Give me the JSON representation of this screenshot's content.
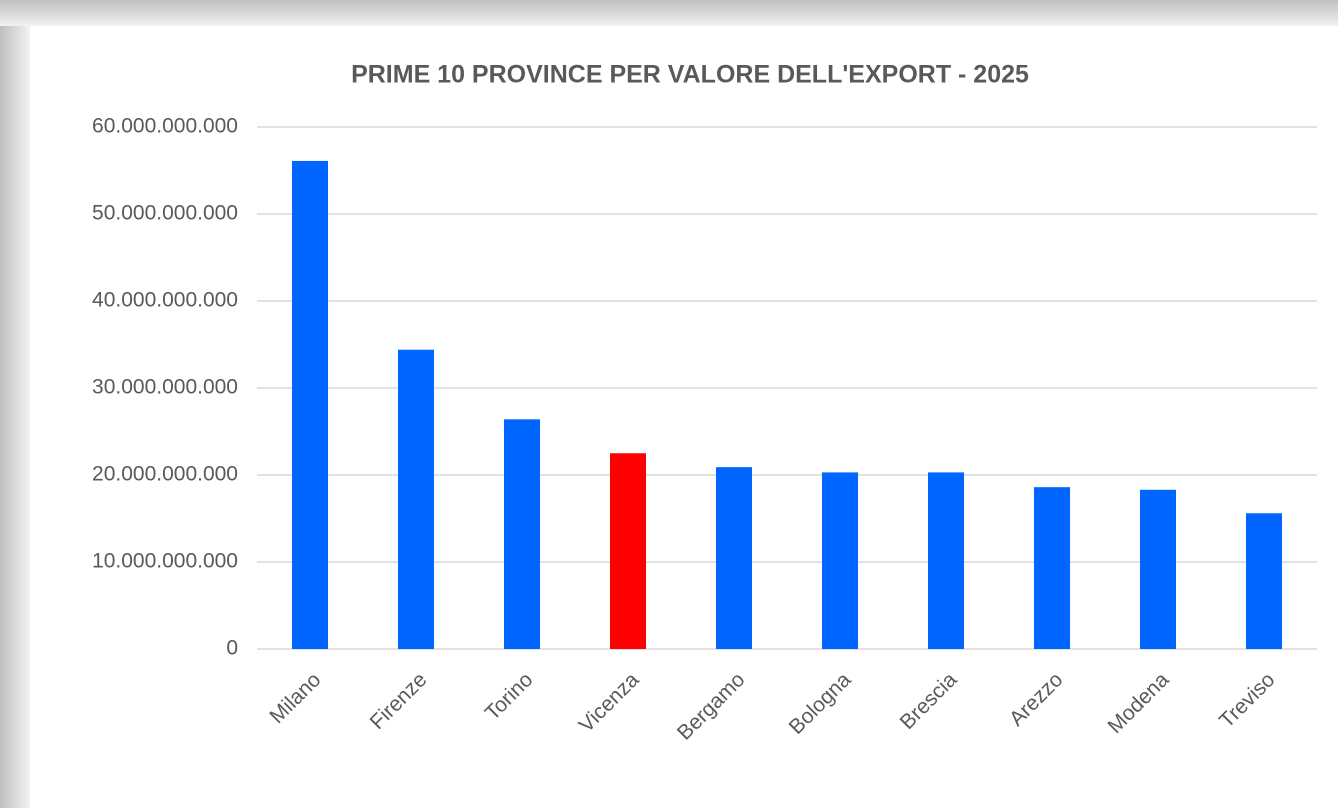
{
  "chart_data": {
    "type": "bar",
    "title": "PRIME 10 PROVINCE PER VALORE DELL'EXPORT - 2025",
    "categories": [
      "Milano",
      "Firenze",
      "Torino",
      "Vicenza",
      "Bergamo",
      "Bologna",
      "Brescia",
      "Arezzo",
      "Modena",
      "Treviso"
    ],
    "values": [
      56100000000,
      34400000000,
      26400000000,
      22500000000,
      20900000000,
      20300000000,
      20300000000,
      18600000000,
      18300000000,
      15600000000
    ],
    "colors": [
      "#0066ff",
      "#0066ff",
      "#0066ff",
      "#ff0000",
      "#0066ff",
      "#0066ff",
      "#0066ff",
      "#0066ff",
      "#0066ff",
      "#0066ff"
    ],
    "ylim": [
      0,
      60000000000
    ],
    "yticks": [
      0,
      {
        "value": 10000000000,
        "label": "10.000.000.000"
      },
      {
        "value": 20000000000,
        "label": "20.000.000.000"
      },
      {
        "value": 30000000000,
        "label": "30.000.000.000"
      },
      {
        "value": 40000000000,
        "label": "40.000.000.000"
      },
      {
        "value": 50000000000,
        "label": "50.000.000.000"
      },
      {
        "value": 60000000000,
        "label": "60.000.000.000"
      }
    ],
    "grid": true
  }
}
